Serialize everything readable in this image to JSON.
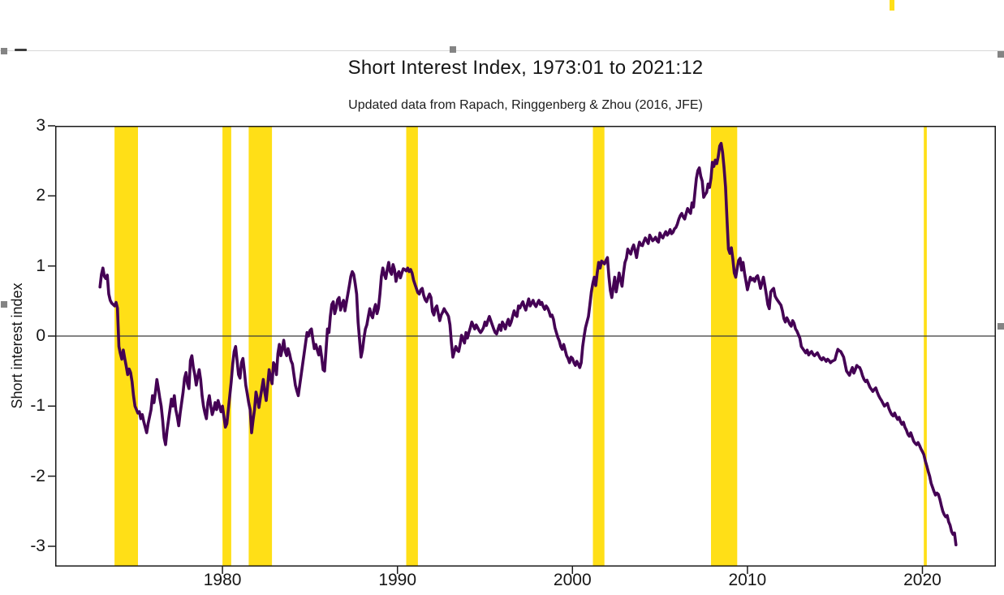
{
  "figure": {
    "title": "Short Interest Index, 1973:01 to 2021:12",
    "subtitle": "Updated data from Rapach, Ringgenberg & Zhou (2016, JFE)"
  },
  "chart_data": {
    "type": "line",
    "title": "Short Interest Index, 1973:01 to 2021:12",
    "subtitle": "Updated data from Rapach, Ringgenberg & Zhou (2016, JFE)",
    "xlabel": "",
    "ylabel": "Short interest index",
    "xlim": [
      1970.44,
      2024.2
    ],
    "ylim": [
      -3.29,
      3.0
    ],
    "grid": false,
    "zero_line": true,
    "legend": "none",
    "x_ticks": [
      "1980",
      "1990",
      "2000",
      "2010",
      "2020"
    ],
    "x_tick_years": [
      1980,
      1990,
      2000,
      2010,
      2020
    ],
    "y_ticks": [
      "3",
      "2",
      "1",
      "0",
      "-1",
      "-2",
      "-3"
    ],
    "y_tick_values": [
      3,
      2,
      1,
      0,
      -1,
      -2,
      -3
    ],
    "line_color": "#440154",
    "band_color": "#FFDF17",
    "recession_bands": [
      [
        1973.83,
        1975.17
      ],
      [
        1980.0,
        1980.5
      ],
      [
        1981.5,
        1982.83
      ],
      [
        1990.5,
        1991.17
      ],
      [
        2001.17,
        2001.83
      ],
      [
        2007.92,
        2009.42
      ],
      [
        2020.08,
        2020.25
      ]
    ],
    "series": [
      {
        "name": "Short interest index",
        "start_year": 1973,
        "frequency": "monthly",
        "values_by_year": [
          [
            0.7,
            0.88,
            0.97,
            0.85,
            0.82,
            0.87,
            0.6,
            0.51,
            0.47,
            0.45,
            0.43,
            0.48
          ],
          [
            0.4,
            -0.15,
            -0.25,
            -0.33,
            -0.2,
            -0.32,
            -0.43,
            -0.55,
            -0.47,
            -0.52,
            -0.65,
            -0.85
          ],
          [
            -1.0,
            -1.05,
            -1.1,
            -1.08,
            -1.18,
            -1.12,
            -1.22,
            -1.3,
            -1.38,
            -1.25,
            -1.15,
            -1.05
          ],
          [
            -0.85,
            -0.95,
            -0.8,
            -0.62,
            -0.75,
            -0.88,
            -1.0,
            -1.2,
            -1.45,
            -1.55,
            -1.35,
            -1.2
          ],
          [
            -1.05,
            -0.9,
            -1.0,
            -0.85,
            -1.05,
            -1.15,
            -1.28,
            -1.1,
            -0.95,
            -0.8,
            -0.6,
            -0.52
          ],
          [
            -0.68,
            -0.75,
            -0.35,
            -0.28,
            -0.45,
            -0.55,
            -0.7,
            -0.58,
            -0.48,
            -0.62,
            -0.85,
            -1.0
          ],
          [
            -1.1,
            -1.18,
            -0.95,
            -0.85,
            -1.0,
            -1.12,
            -1.05,
            -0.95,
            -1.05,
            -0.92,
            -1.0,
            -1.08
          ],
          [
            -1.0,
            -1.15,
            -1.3,
            -1.25,
            -1.05,
            -0.85,
            -0.65,
            -0.4,
            -0.22,
            -0.15,
            -0.35,
            -0.55
          ],
          [
            -0.6,
            -0.38,
            -0.32,
            -0.5,
            -0.7,
            -0.82,
            -0.95,
            -1.05,
            -1.38,
            -1.2,
            -1.05,
            -0.8
          ],
          [
            -0.9,
            -1.02,
            -0.88,
            -0.75,
            -0.62,
            -0.8,
            -0.92,
            -0.7,
            -0.48,
            -0.6,
            -0.68,
            -0.38
          ],
          [
            -0.42,
            -0.55,
            -0.25,
            -0.12,
            -0.28,
            -0.18,
            -0.06,
            -0.22,
            -0.28,
            -0.18,
            -0.25,
            -0.35
          ],
          [
            -0.4,
            -0.55,
            -0.7,
            -0.78,
            -0.85,
            -0.7,
            -0.55,
            -0.4,
            -0.25,
            -0.1,
            0.05,
            0.0
          ],
          [
            0.08,
            0.1,
            -0.05,
            -0.18,
            -0.12,
            -0.2,
            -0.27,
            -0.15,
            -0.3,
            -0.48,
            -0.5,
            -0.2
          ],
          [
            0.1,
            0.05,
            0.28,
            0.45,
            0.49,
            0.32,
            0.4,
            0.52,
            0.55,
            0.37,
            0.45,
            0.51
          ],
          [
            0.36,
            0.48,
            0.6,
            0.72,
            0.85,
            0.92,
            0.88,
            0.75,
            0.6,
            0.2,
            -0.05,
            -0.3
          ],
          [
            -0.2,
            -0.03,
            0.1,
            0.16,
            0.28,
            0.39,
            0.3,
            0.26,
            0.38,
            0.45,
            0.32,
            0.4
          ],
          [
            0.6,
            0.85,
            0.97,
            0.88,
            0.82,
            0.95,
            1.05,
            0.92,
            0.88,
            1.02,
            0.95,
            0.78
          ],
          [
            0.88,
            0.92,
            0.83,
            0.9,
            0.96,
            0.95,
            0.93,
            0.97,
            0.92,
            0.95,
            0.9,
            0.8
          ],
          [
            0.74,
            0.68,
            0.62,
            0.6,
            0.66,
            0.68,
            0.58,
            0.52,
            0.49,
            0.55,
            0.6,
            0.55
          ],
          [
            0.35,
            0.3,
            0.4,
            0.43,
            0.32,
            0.22,
            0.3,
            0.34,
            0.39,
            0.35,
            0.32,
            0.28
          ],
          [
            0.16,
            -0.1,
            -0.3,
            -0.22,
            -0.15,
            -0.2,
            -0.22,
            -0.12,
            0.01,
            -0.05,
            -0.1,
            0.05
          ],
          [
            -0.03,
            0.05,
            0.12,
            0.2,
            0.15,
            0.1,
            0.16,
            0.12,
            0.08,
            0.05,
            0.08,
            0.12
          ],
          [
            0.2,
            0.15,
            0.22,
            0.28,
            0.22,
            0.16,
            0.1,
            0.05,
            0.03,
            0.1,
            0.16,
            0.08
          ],
          [
            0.2,
            0.16,
            0.1,
            0.18,
            0.24,
            0.15,
            0.2,
            0.28,
            0.36,
            0.3,
            0.28,
            0.43
          ],
          [
            0.4,
            0.45,
            0.49,
            0.42,
            0.37,
            0.45,
            0.53,
            0.43,
            0.47,
            0.51,
            0.45,
            0.42
          ],
          [
            0.47,
            0.51,
            0.45,
            0.48,
            0.42,
            0.38,
            0.43,
            0.4,
            0.35,
            0.28,
            0.3,
            0.24
          ],
          [
            0.12,
            0.05,
            -0.02,
            -0.07,
            -0.15,
            -0.19,
            -0.12,
            -0.2,
            -0.28,
            -0.32,
            -0.38,
            -0.3
          ],
          [
            -0.32,
            -0.38,
            -0.42,
            -0.36,
            -0.4,
            -0.45,
            -0.38,
            -0.15,
            0.0,
            0.12,
            0.2,
            0.28
          ],
          [
            0.45,
            0.63,
            0.75,
            0.84,
            0.72,
            0.9,
            1.05,
            0.97,
            1.07,
            1.05,
            1.03,
            1.08
          ],
          [
            1.12,
            0.85,
            0.65,
            0.55,
            0.7,
            0.84,
            0.63,
            0.75,
            0.9,
            0.8,
            0.71,
            0.9
          ],
          [
            1.05,
            1.11,
            1.24,
            1.2,
            1.17,
            1.25,
            1.3,
            1.22,
            1.12,
            1.25,
            1.34,
            1.3
          ],
          [
            1.29,
            1.35,
            1.4,
            1.36,
            1.32,
            1.44,
            1.4,
            1.36,
            1.38,
            1.41,
            1.36,
            1.34
          ],
          [
            1.47,
            1.42,
            1.4,
            1.45,
            1.49,
            1.44,
            1.47,
            1.52,
            1.46,
            1.48,
            1.53,
            1.55
          ],
          [
            1.6,
            1.67,
            1.72,
            1.75,
            1.7,
            1.67,
            1.75,
            1.82,
            1.78,
            1.75,
            1.9,
            1.84
          ],
          [
            2.05,
            2.25,
            2.36,
            2.4,
            2.28,
            2.21,
            1.98,
            2.02,
            2.05,
            2.17,
            2.12,
            2.25
          ],
          [
            2.48,
            2.42,
            2.51,
            2.46,
            2.56,
            2.71,
            2.75,
            2.62,
            2.4,
            2.13,
            1.67,
            1.24
          ],
          [
            1.18,
            1.26,
            1.1,
            0.9,
            0.84,
            0.97,
            1.08,
            1.11,
            0.94,
            1.05,
            0.9,
            0.78
          ],
          [
            0.66,
            0.75,
            0.84,
            0.8,
            0.82,
            0.78,
            0.84,
            0.86,
            0.78,
            0.68,
            0.76,
            0.84
          ],
          [
            0.72,
            0.59,
            0.45,
            0.39,
            0.63,
            0.66,
            0.68,
            0.57,
            0.53,
            0.5,
            0.47,
            0.44
          ],
          [
            0.36,
            0.25,
            0.2,
            0.26,
            0.22,
            0.17,
            0.14,
            0.22,
            0.18,
            0.1,
            0.07,
            0.02
          ],
          [
            -0.03,
            -0.15,
            -0.18,
            -0.21,
            -0.24,
            -0.2,
            -0.27,
            -0.24,
            -0.22,
            -0.26,
            -0.28,
            -0.26
          ],
          [
            -0.24,
            -0.28,
            -0.32,
            -0.34,
            -0.31,
            -0.33,
            -0.36,
            -0.33,
            -0.35,
            -0.38,
            -0.36,
            -0.35
          ],
          [
            -0.34,
            -0.26,
            -0.19,
            -0.21,
            -0.22,
            -0.26,
            -0.3,
            -0.4,
            -0.5,
            -0.53,
            -0.56,
            -0.5
          ],
          [
            -0.45,
            -0.53,
            -0.48,
            -0.42,
            -0.44,
            -0.45,
            -0.5,
            -0.57,
            -0.62,
            -0.65,
            -0.63,
            -0.68
          ],
          [
            -0.73,
            -0.76,
            -0.79,
            -0.76,
            -0.74,
            -0.8,
            -0.85,
            -0.89,
            -0.92,
            -0.96,
            -1.0,
            -0.98
          ],
          [
            -0.96,
            -1.03,
            -1.08,
            -1.12,
            -1.14,
            -1.1,
            -1.15,
            -1.19,
            -1.16,
            -1.22,
            -1.26,
            -1.23
          ],
          [
            -1.3,
            -1.34,
            -1.4,
            -1.43,
            -1.38,
            -1.44,
            -1.5,
            -1.53,
            -1.55,
            -1.52,
            -1.56,
            -1.61
          ],
          [
            -1.65,
            -1.69,
            -1.78,
            -1.85,
            -1.93,
            -2.0,
            -2.1,
            -2.16,
            -2.22,
            -2.27,
            -2.24,
            -2.26
          ],
          [
            -2.33,
            -2.42,
            -2.5,
            -2.55,
            -2.58,
            -2.56,
            -2.65,
            -2.7,
            -2.79,
            -2.83,
            -2.81,
            -2.98
          ]
        ]
      }
    ]
  }
}
